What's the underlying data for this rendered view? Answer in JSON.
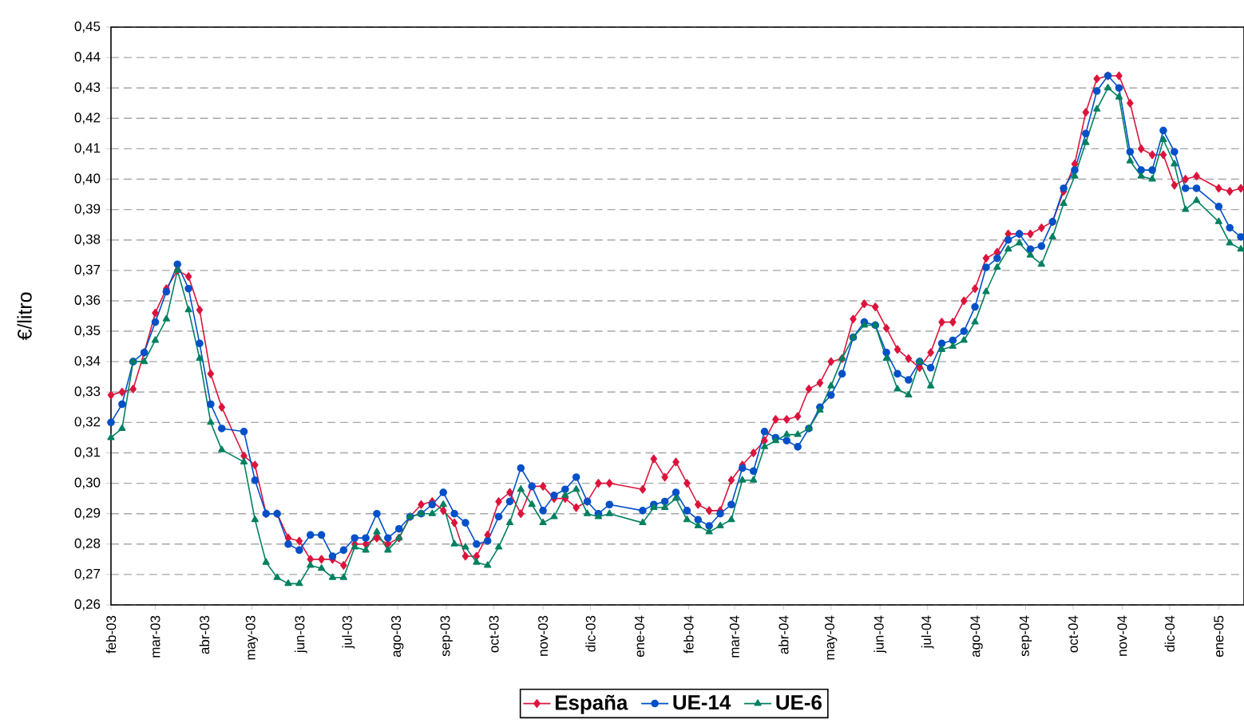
{
  "chart_data": {
    "type": "line",
    "ylabel": "€/litro",
    "grid": "y",
    "legend": "bottom",
    "xlim": [
      "2003-02-01",
      "2005-01-17"
    ],
    "xticks": [
      {
        "value": "2003-02-01",
        "label": "feb-03"
      },
      {
        "value": "2003-03-01",
        "label": "mar-03"
      },
      {
        "value": "2003-04-01",
        "label": "abr-03"
      },
      {
        "value": "2003-05-01",
        "label": "may-03"
      },
      {
        "value": "2003-06-01",
        "label": "jun-03"
      },
      {
        "value": "2003-07-01",
        "label": "jul-03"
      },
      {
        "value": "2003-08-01",
        "label": "ago-03"
      },
      {
        "value": "2003-09-01",
        "label": "sep-03"
      },
      {
        "value": "2003-10-01",
        "label": "oct-03"
      },
      {
        "value": "2003-11-01",
        "label": "nov-03"
      },
      {
        "value": "2003-12-01",
        "label": "dic-03"
      },
      {
        "value": "2004-01-01",
        "label": "ene-04"
      },
      {
        "value": "2004-02-01",
        "label": "feb-04"
      },
      {
        "value": "2004-03-01",
        "label": "mar-04"
      },
      {
        "value": "2004-04-01",
        "label": "abr-04"
      },
      {
        "value": "2004-05-01",
        "label": "may-04"
      },
      {
        "value": "2004-06-01",
        "label": "jun-04"
      },
      {
        "value": "2004-07-01",
        "label": "jul-04"
      },
      {
        "value": "2004-08-01",
        "label": "ago-04"
      },
      {
        "value": "2004-09-01",
        "label": "sep-04"
      },
      {
        "value": "2004-10-01",
        "label": "oct-04"
      },
      {
        "value": "2004-11-01",
        "label": "nov-04"
      },
      {
        "value": "2004-12-01",
        "label": "dic-04"
      },
      {
        "value": "2005-01-01",
        "label": "ene-05"
      }
    ],
    "ylim": [
      0.26,
      0.45
    ],
    "yticks": [
      {
        "value": 0.26,
        "label": "0,26"
      },
      {
        "value": 0.27,
        "label": "0,27"
      },
      {
        "value": 0.28,
        "label": "0,28"
      },
      {
        "value": 0.29,
        "label": "0,29"
      },
      {
        "value": 0.3,
        "label": "0,30"
      },
      {
        "value": 0.31,
        "label": "0,31"
      },
      {
        "value": 0.32,
        "label": "0,32"
      },
      {
        "value": 0.33,
        "label": "0,33"
      },
      {
        "value": 0.34,
        "label": "0,34"
      },
      {
        "value": 0.35,
        "label": "0,35"
      },
      {
        "value": 0.36,
        "label": "0,36"
      },
      {
        "value": 0.37,
        "label": "0,37"
      },
      {
        "value": 0.38,
        "label": "0,38"
      },
      {
        "value": 0.39,
        "label": "0,39"
      },
      {
        "value": 0.4,
        "label": "0,40"
      },
      {
        "value": 0.41,
        "label": "0,41"
      },
      {
        "value": 0.42,
        "label": "0,42"
      },
      {
        "value": 0.43,
        "label": "0,43"
      },
      {
        "value": 0.44,
        "label": "0,44"
      },
      {
        "value": 0.45,
        "label": "0,45"
      }
    ],
    "x": [
      "2003-02-01",
      "2003-02-08",
      "2003-02-15",
      "2003-02-22",
      "2003-03-01",
      "2003-03-08",
      "2003-03-15",
      "2003-03-22",
      "2003-03-29",
      "2003-04-05",
      "2003-04-12",
      "2003-04-26",
      "2003-05-03",
      "2003-05-10",
      "2003-05-17",
      "2003-05-24",
      "2003-05-31",
      "2003-06-07",
      "2003-06-14",
      "2003-06-21",
      "2003-06-28",
      "2003-07-05",
      "2003-07-12",
      "2003-07-19",
      "2003-07-26",
      "2003-08-02",
      "2003-08-09",
      "2003-08-16",
      "2003-08-23",
      "2003-08-30",
      "2003-09-06",
      "2003-09-13",
      "2003-09-20",
      "2003-09-27",
      "2003-10-04",
      "2003-10-11",
      "2003-10-18",
      "2003-10-25",
      "2003-11-01",
      "2003-11-08",
      "2003-11-15",
      "2003-11-22",
      "2003-11-29",
      "2003-12-06",
      "2003-12-13",
      "2004-01-03",
      "2004-01-10",
      "2004-01-17",
      "2004-01-24",
      "2004-01-31",
      "2004-02-07",
      "2004-02-14",
      "2004-02-21",
      "2004-02-28",
      "2004-03-06",
      "2004-03-13",
      "2004-03-20",
      "2004-03-27",
      "2004-04-03",
      "2004-04-10",
      "2004-04-17",
      "2004-04-24",
      "2004-05-01",
      "2004-05-08",
      "2004-05-15",
      "2004-05-22",
      "2004-05-29",
      "2004-06-05",
      "2004-06-12",
      "2004-06-19",
      "2004-06-26",
      "2004-07-03",
      "2004-07-10",
      "2004-07-17",
      "2004-07-24",
      "2004-07-31",
      "2004-08-07",
      "2004-08-14",
      "2004-08-21",
      "2004-08-28",
      "2004-09-04",
      "2004-09-11",
      "2004-09-18",
      "2004-09-25",
      "2004-10-02",
      "2004-10-09",
      "2004-10-16",
      "2004-10-23",
      "2004-10-30",
      "2004-11-06",
      "2004-11-13",
      "2004-11-20",
      "2004-11-27",
      "2004-12-04",
      "2004-12-11",
      "2004-12-18",
      "2005-01-01",
      "2005-01-08",
      "2005-01-15"
    ],
    "series": [
      {
        "name": "España",
        "color": "#dc143c",
        "marker": "diamond",
        "values": [
          0.329,
          0.33,
          0.331,
          0.343,
          0.356,
          0.364,
          0.37,
          0.368,
          0.357,
          0.336,
          0.325,
          0.309,
          0.306,
          0.29,
          0.29,
          0.282,
          0.281,
          0.275,
          0.275,
          0.275,
          0.273,
          0.28,
          0.28,
          0.282,
          0.28,
          0.282,
          0.289,
          0.293,
          0.294,
          0.291,
          0.287,
          0.276,
          0.276,
          0.283,
          0.294,
          0.297,
          0.29,
          0.299,
          0.299,
          0.295,
          0.295,
          0.292,
          0.294,
          0.3,
          0.3,
          0.298,
          0.308,
          0.302,
          0.307,
          0.3,
          0.293,
          0.291,
          0.291,
          0.301,
          0.306,
          0.31,
          0.314,
          0.321,
          0.321,
          0.322,
          0.331,
          0.333,
          0.34,
          0.341,
          0.354,
          0.359,
          0.358,
          0.351,
          0.344,
          0.341,
          0.338,
          0.343,
          0.353,
          0.353,
          0.36,
          0.364,
          0.374,
          0.376,
          0.382,
          0.382,
          0.382,
          0.384,
          0.386,
          0.396,
          0.405,
          0.422,
          0.433,
          0.434,
          0.434,
          0.425,
          0.41,
          0.408,
          0.408,
          0.398,
          0.4,
          0.401,
          0.397,
          0.396,
          0.397
        ]
      },
      {
        "name": "UE-14",
        "color": "#0050c8",
        "marker": "circle",
        "values": [
          0.32,
          0.326,
          0.34,
          0.343,
          0.353,
          0.363,
          0.372,
          0.364,
          0.346,
          0.326,
          0.318,
          0.317,
          0.301,
          0.29,
          0.29,
          0.28,
          0.278,
          0.283,
          0.283,
          0.276,
          0.278,
          0.282,
          0.282,
          0.29,
          0.282,
          0.285,
          0.289,
          0.29,
          0.293,
          0.297,
          0.29,
          0.287,
          0.28,
          0.281,
          0.289,
          0.294,
          0.305,
          0.299,
          0.291,
          0.296,
          0.298,
          0.302,
          0.294,
          0.29,
          0.293,
          0.291,
          0.293,
          0.294,
          0.297,
          0.291,
          0.288,
          0.286,
          0.29,
          0.293,
          0.305,
          0.304,
          0.317,
          0.315,
          0.314,
          0.312,
          0.318,
          0.325,
          0.329,
          0.336,
          0.348,
          0.353,
          0.352,
          0.343,
          0.336,
          0.334,
          0.34,
          0.338,
          0.346,
          0.347,
          0.35,
          0.358,
          0.371,
          0.374,
          0.38,
          0.382,
          0.377,
          0.378,
          0.386,
          0.397,
          0.403,
          0.415,
          0.429,
          0.434,
          0.43,
          0.409,
          0.403,
          0.403,
          0.416,
          0.409,
          0.397,
          0.397,
          0.391,
          0.384,
          0.381
        ]
      },
      {
        "name": "UE-6",
        "color": "#008060",
        "marker": "triangle",
        "values": [
          0.315,
          0.318,
          0.34,
          0.34,
          0.347,
          0.354,
          0.37,
          0.357,
          0.341,
          0.32,
          0.311,
          0.307,
          0.288,
          0.274,
          0.269,
          0.267,
          0.267,
          0.273,
          0.272,
          0.269,
          0.269,
          0.279,
          0.278,
          0.284,
          0.278,
          0.282,
          0.289,
          0.29,
          0.29,
          0.293,
          0.28,
          0.279,
          0.274,
          0.273,
          0.279,
          0.287,
          0.298,
          0.293,
          0.287,
          0.289,
          0.296,
          0.298,
          0.29,
          0.289,
          0.29,
          0.287,
          0.292,
          0.292,
          0.295,
          0.288,
          0.286,
          0.284,
          0.286,
          0.288,
          0.301,
          0.301,
          0.312,
          0.314,
          0.316,
          0.316,
          0.318,
          0.324,
          0.332,
          0.341,
          0.348,
          0.352,
          0.352,
          0.341,
          0.331,
          0.329,
          0.34,
          0.332,
          0.344,
          0.345,
          0.347,
          0.353,
          0.363,
          0.371,
          0.377,
          0.379,
          0.375,
          0.372,
          0.381,
          0.392,
          0.401,
          0.412,
          0.423,
          0.43,
          0.427,
          0.406,
          0.401,
          0.4,
          0.413,
          0.405,
          0.39,
          0.393,
          0.386,
          0.379,
          0.377
        ]
      }
    ]
  }
}
